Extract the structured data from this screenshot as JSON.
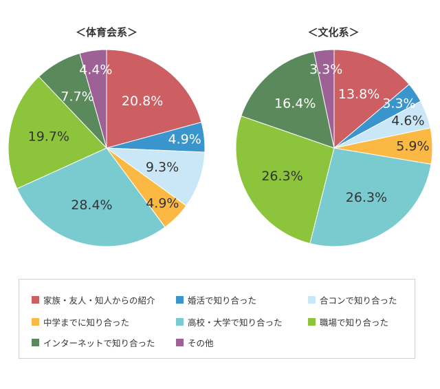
{
  "chart_data": [
    {
      "type": "pie",
      "title": "＜体育会系＞",
      "categories": [
        "家族・友人・知人からの紹介",
        "婚活で知り合った",
        "合コンで知り合った",
        "中学までに知り合った",
        "高校・大学で知り合った",
        "職場で知り合った",
        "インターネットで知り合った",
        "その他"
      ],
      "values": [
        20.8,
        4.9,
        9.3,
        4.9,
        28.4,
        19.7,
        7.7,
        4.4
      ],
      "labels": [
        "20.8%",
        "4.9%",
        "9.3%",
        "4.9%",
        "28.4%",
        "19.7%",
        "7.7%",
        "4.4%"
      ],
      "unit": "%"
    },
    {
      "type": "pie",
      "title": "＜文化系＞",
      "categories": [
        "家族・友人・知人からの紹介",
        "婚活で知り合った",
        "合コンで知り合った",
        "中学までに知り合った",
        "高校・大学で知り合った",
        "職場で知り合った",
        "インターネットで知り合った",
        "その他"
      ],
      "values": [
        13.8,
        3.3,
        4.6,
        5.9,
        26.3,
        26.3,
        16.4,
        3.3
      ],
      "labels": [
        "13.8%",
        "3.3%",
        "4.6%",
        "5.9%",
        "26.3%",
        "26.3%",
        "16.4%",
        "3.3%"
      ],
      "unit": "%"
    }
  ],
  "colors": [
    "#cd5f63",
    "#3a95cc",
    "#c9e7f7",
    "#fbb944",
    "#7acbcf",
    "#8cc43c",
    "#5a8a5c",
    "#9e6196"
  ],
  "label_colors": [
    "#ffffff",
    "#ffffff",
    "#333333",
    "#333333",
    "#333333",
    "#333333",
    "#ffffff",
    "#ffffff"
  ],
  "legend": {
    "items": [
      "家族・友人・知人からの紹介",
      "婚活で知り合った",
      "合コンで知り合った",
      "中学までに知り合った",
      "高校・大学で知り合った",
      "職場で知り合った",
      "インターネットで知り合った",
      "その他"
    ]
  }
}
